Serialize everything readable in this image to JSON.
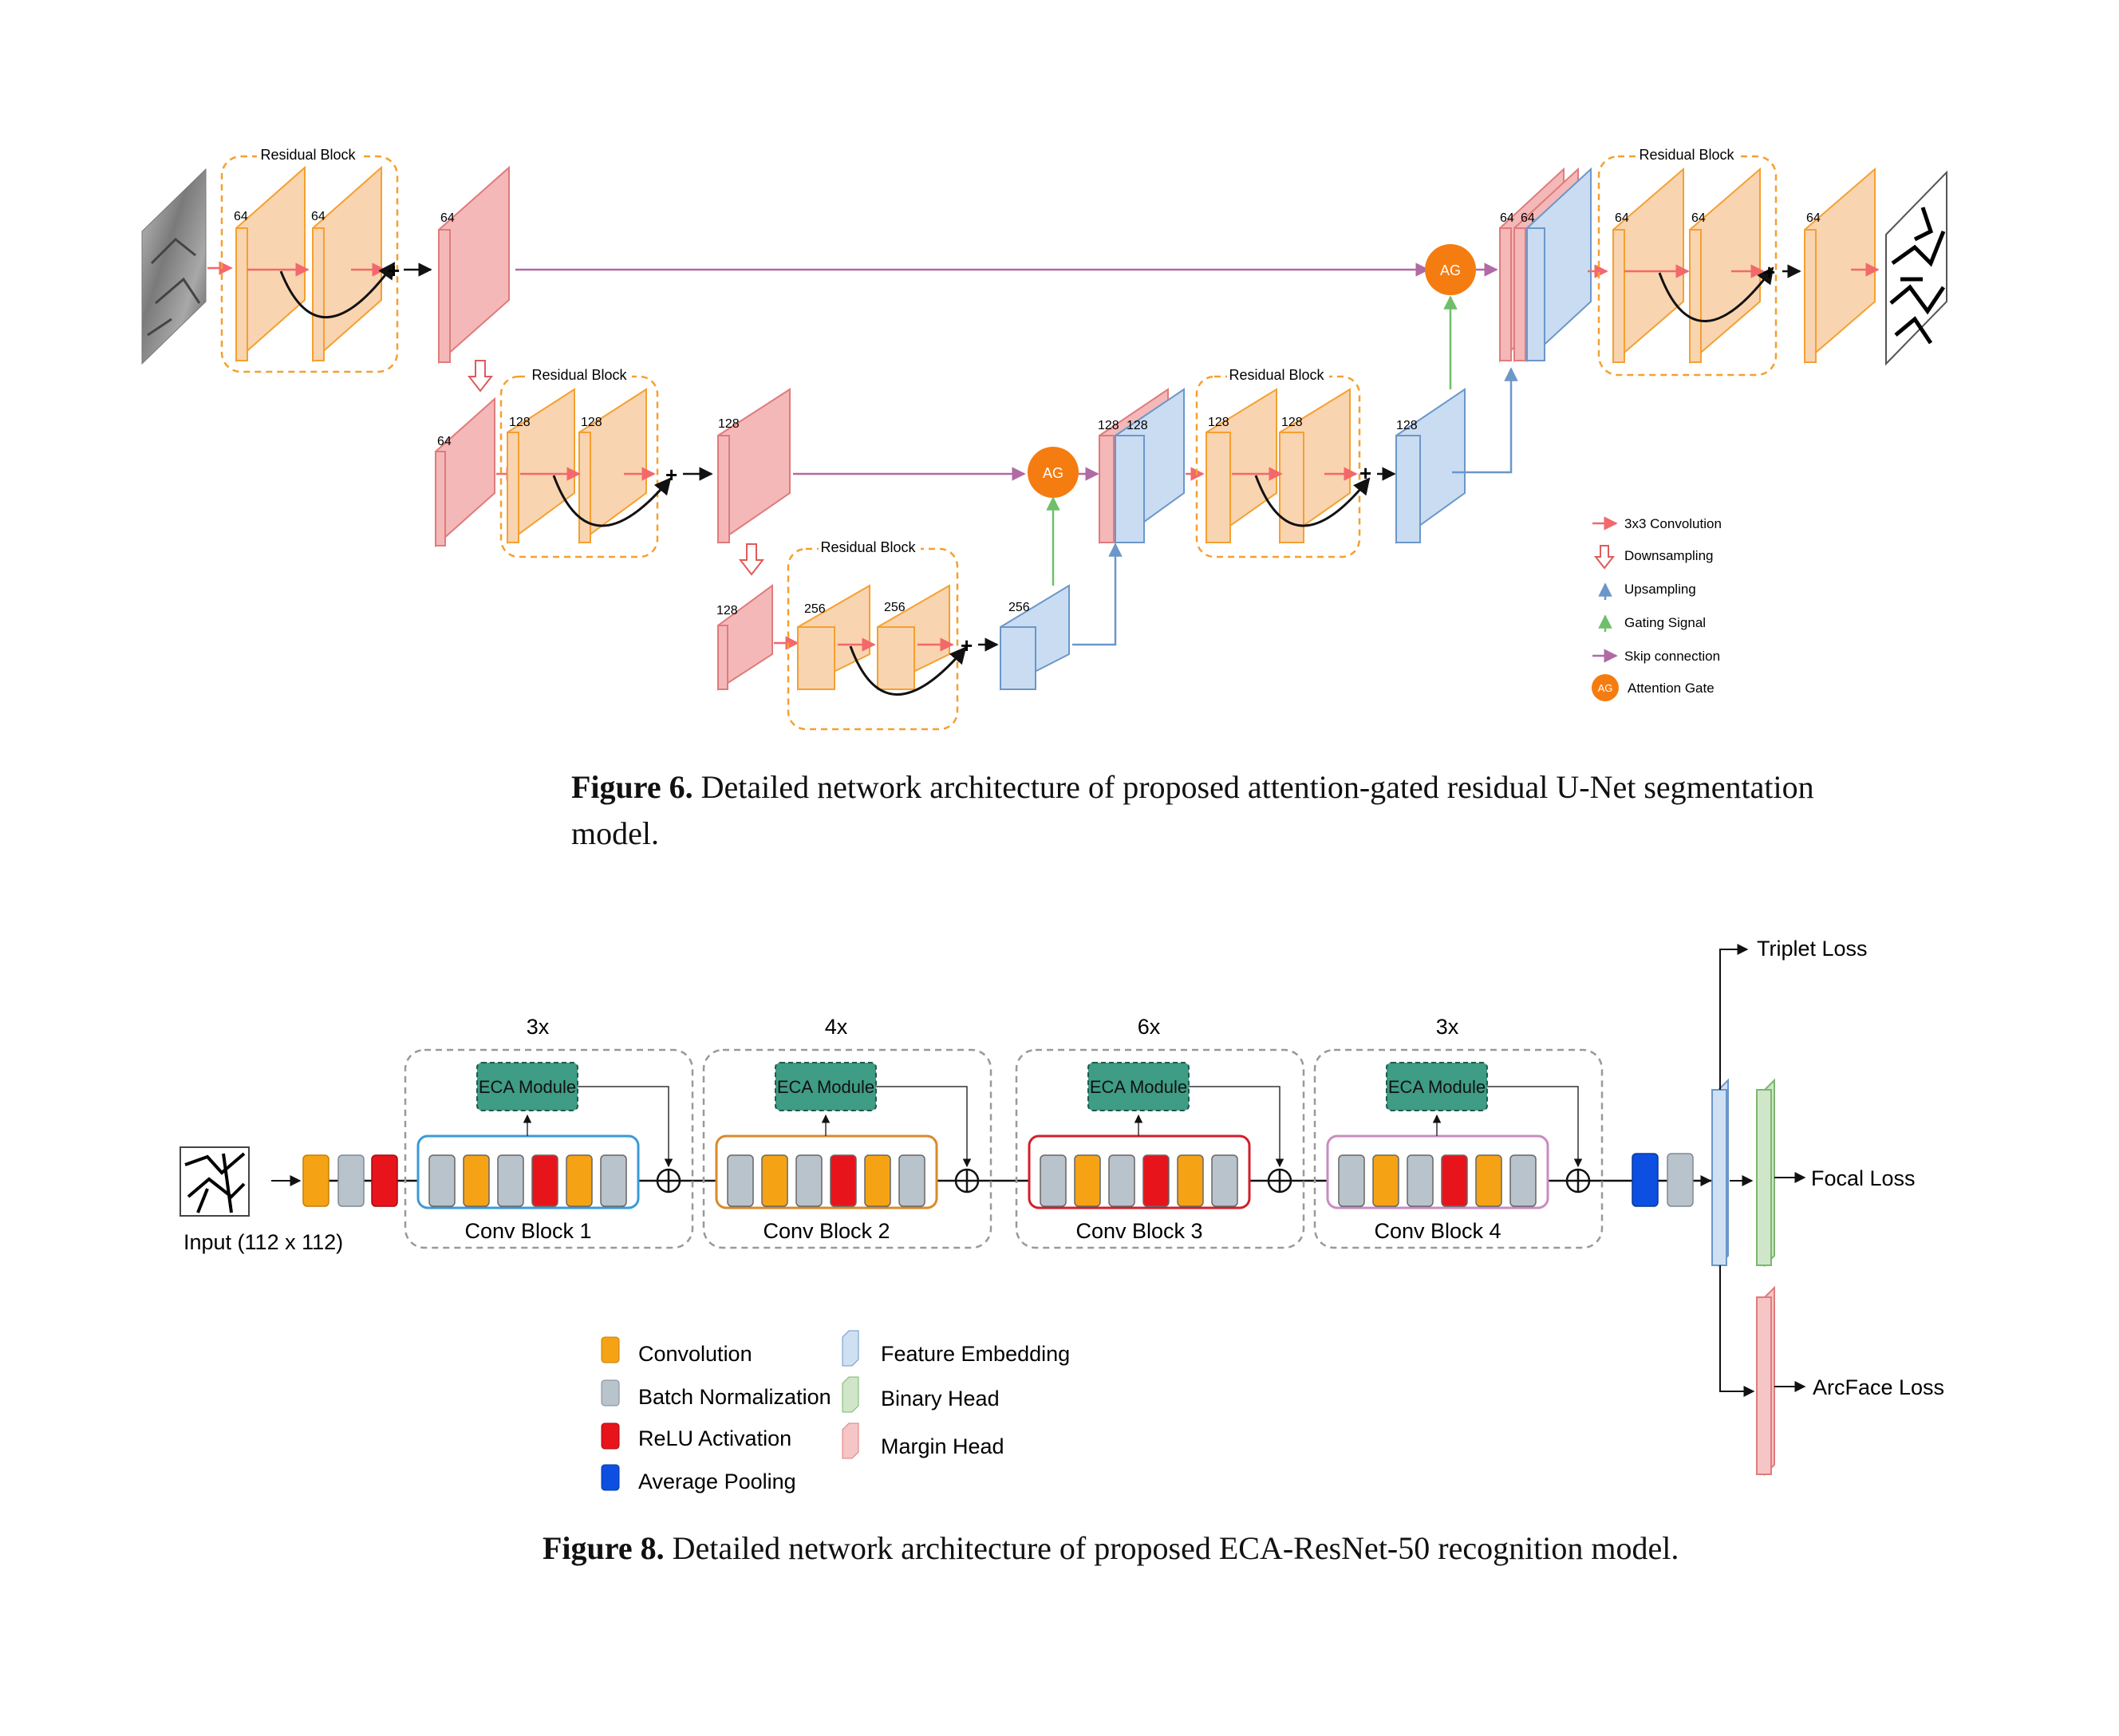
{
  "figure6": {
    "residual_block_label": "Residual Block",
    "channels": {
      "c64": "64",
      "c128": "128",
      "c256": "256"
    },
    "ag_label": "AG",
    "plus": "+",
    "legend": {
      "conv": "3x3 Convolution",
      "down": "Downsampling",
      "up": "Upsampling",
      "gating": "Gating Signal",
      "skip": "Skip connection",
      "ag": "Attention Gate"
    },
    "caption_label": "Figure 6.",
    "caption_text": "Detailed network architecture of proposed attention-gated residual U-Net segmentation",
    "caption_text2": "model."
  },
  "figure8": {
    "input_label": "Input (112 x 112)",
    "blocks": [
      {
        "repeat": "3x",
        "name": "Conv Block 1",
        "eca": "ECA Module",
        "color": "#3a9ad9"
      },
      {
        "repeat": "4x",
        "name": "Conv Block 2",
        "eca": "ECA Module",
        "color": "#d98a2b"
      },
      {
        "repeat": "6x",
        "name": "Conv Block 3",
        "eca": "ECA Module",
        "color": "#d21f2b"
      },
      {
        "repeat": "3x",
        "name": "Conv Block 4",
        "eca": "ECA Module",
        "color": "#c98bc2"
      }
    ],
    "losses": {
      "triplet": "Triplet Loss",
      "focal": "Focal Loss",
      "arcface": "ArcFace Loss"
    },
    "legend": {
      "convolution": "Convolution",
      "batch_norm": "Batch Normalization",
      "relu": "ReLU Activation",
      "avg_pool": "Average Pooling",
      "feature_embedding": "Feature Embedding",
      "binary_head": "Binary Head",
      "margin_head": "Margin Head"
    },
    "caption_label": "Figure 8.",
    "caption_text": "Detailed network architecture of proposed ECA-ResNet-50 recognition model."
  },
  "colors": {
    "conv_orange": "#f5a314",
    "batch_norm_gray": "#b9c3cc",
    "relu_red": "#e8141b",
    "avg_pool_blue": "#0d4fe0",
    "eca_teal": "#3f9c85",
    "feature_blue": "#cfe0f3",
    "binary_green": "#cfe6c8",
    "margin_pink": "#f6c5c6",
    "encoder_pink": "#f4b8b8",
    "residual_peach": "#f9d4b0",
    "decoder_blue": "#c9dcf2",
    "ag_orange": "#f57c10",
    "skip_purple": "#b06aa4",
    "gating_green": "#6fbf6a",
    "up_blue": "#6b97c9",
    "conv_arrow_red": "#f2686b"
  }
}
